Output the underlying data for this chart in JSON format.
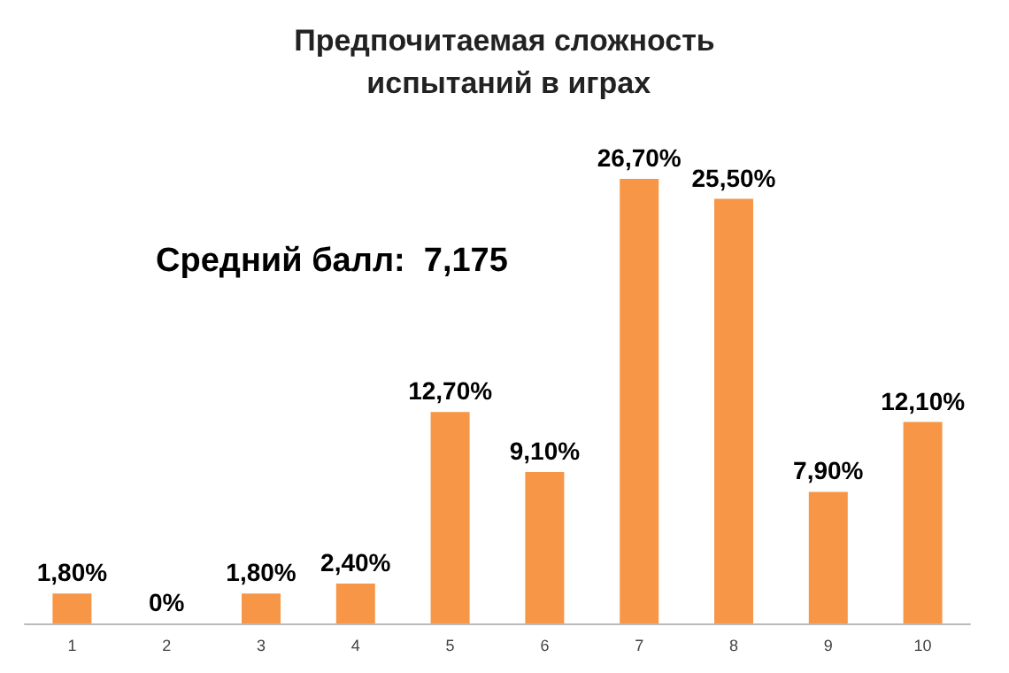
{
  "chart_data": {
    "type": "bar",
    "title": "Предпочитаемая сложность испытаний в играх",
    "categories": [
      "1",
      "2",
      "3",
      "4",
      "5",
      "6",
      "7",
      "8",
      "9",
      "10"
    ],
    "values": [
      1.8,
      0,
      1.8,
      2.4,
      12.7,
      9.1,
      26.7,
      25.5,
      7.9,
      12.1
    ],
    "value_labels": [
      "1,80%",
      "0%",
      "1,80%",
      "2,40%",
      "12,70%",
      "9,10%",
      "26,70%",
      "25,50%",
      "7,90%",
      "12,10%"
    ],
    "color": "#f79646",
    "annotations": [
      "Средний балл:  7,175"
    ]
  }
}
